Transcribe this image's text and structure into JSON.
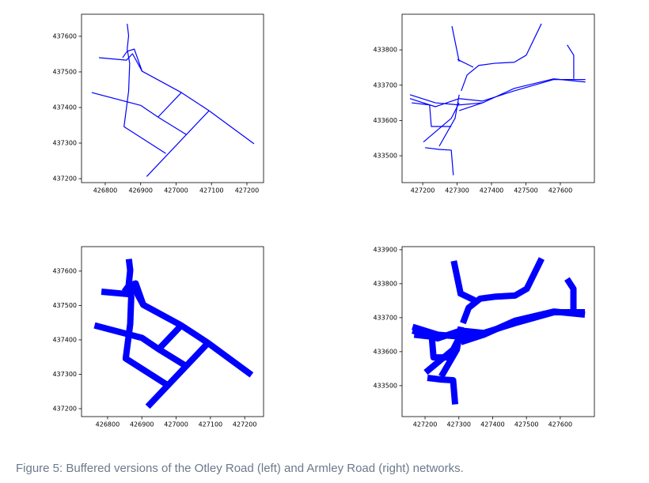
{
  "chart_data": [
    {
      "type": "network",
      "color": "#0000ff",
      "linewidth": 1.2,
      "xlim": [
        426733,
        427247
      ],
      "ylim": [
        437189,
        437662
      ],
      "xticks": [
        426800,
        426900,
        427000,
        427100,
        427200
      ],
      "yticks": [
        437200,
        437300,
        437400,
        437500,
        437600
      ],
      "lines": [
        {
          "x": [
            426862,
            426866,
            426862,
            426869,
            426866,
            426853,
            426971
          ],
          "y": [
            437635,
            437602,
            437564,
            437524,
            437446,
            437346,
            437271
          ]
        },
        {
          "x": [
            426782,
            426860,
            426877,
            426904,
            427015,
            427093,
            427220
          ],
          "y": [
            437540,
            437533,
            437551,
            437502,
            437442,
            437391,
            437298
          ]
        },
        {
          "x": [
            426762,
            426900,
            426949,
            427029
          ],
          "y": [
            437442,
            437406,
            437373,
            437324
          ]
        },
        {
          "x": [
            426949,
            427015
          ],
          "y": [
            437373,
            437442
          ]
        },
        {
          "x": [
            426917,
            427093
          ],
          "y": [
            437206,
            437391
          ]
        },
        {
          "x": [
            426849,
            426862,
            426882,
            426904
          ],
          "y": [
            437540,
            437558,
            437564,
            437502
          ]
        }
      ]
    },
    {
      "type": "network",
      "color": "#0000ff",
      "linewidth": 1.2,
      "xlim": [
        427140,
        427699
      ],
      "ylim": [
        433424,
        433901
      ],
      "xticks": [
        427200,
        427300,
        427400,
        427500,
        427600
      ],
      "yticks": [
        433500,
        433600,
        433700,
        433800
      ],
      "lines": [
        {
          "x": [
            427285,
            427306
          ],
          "y": [
            433867,
            433767
          ]
        },
        {
          "x": [
            427301,
            427347
          ],
          "y": [
            433773,
            433751
          ]
        },
        {
          "x": [
            427312,
            427329,
            427363,
            427409,
            427466,
            427501,
            427545
          ],
          "y": [
            433684,
            433729,
            433756,
            433762,
            433765,
            433785,
            433874
          ]
        },
        {
          "x": [
            427163,
            427237,
            427306,
            427374,
            427466,
            427581,
            427673
          ],
          "y": [
            433673,
            433650,
            433644,
            433650,
            433691,
            433718,
            433709
          ]
        },
        {
          "x": [
            427163,
            427237,
            427306,
            427374,
            427466,
            427581,
            427673
          ],
          "y": [
            433662,
            433639,
            433662,
            433655,
            433684,
            433716,
            433716
          ]
        },
        {
          "x": [
            427620,
            427639,
            427639
          ],
          "y": [
            433814,
            433785,
            433718
          ]
        },
        {
          "x": [
            427168,
            427220,
            427225,
            427283
          ],
          "y": [
            433650,
            433644,
            433583,
            433583
          ]
        },
        {
          "x": [
            427202,
            427283,
            427306
          ],
          "y": [
            433539,
            433606,
            433650
          ]
        },
        {
          "x": [
            427306,
            427374
          ],
          "y": [
            433628,
            433650
          ]
        },
        {
          "x": [
            427207,
            427248,
            427283,
            427289
          ],
          "y": [
            433523,
            433518,
            433516,
            433445
          ]
        },
        {
          "x": [
            427248,
            427294,
            427306
          ],
          "y": [
            433527,
            433606,
            433673
          ]
        }
      ]
    },
    {
      "type": "network",
      "color": "#0000ff",
      "linewidth": 8,
      "xlim": [
        426724,
        427255
      ],
      "ylim": [
        437177,
        437671
      ],
      "xticks": [
        426800,
        426900,
        427000,
        427100,
        427200
      ],
      "yticks": [
        437200,
        437300,
        437400,
        437500,
        437600
      ],
      "lines": [
        {
          "x": [
            426862,
            426866,
            426862,
            426869,
            426866,
            426853,
            426971
          ],
          "y": [
            437635,
            437602,
            437564,
            437524,
            437446,
            437346,
            437271
          ]
        },
        {
          "x": [
            426782,
            426860,
            426877,
            426904,
            427015,
            427093,
            427220
          ],
          "y": [
            437540,
            437533,
            437551,
            437502,
            437442,
            437391,
            437298
          ]
        },
        {
          "x": [
            426762,
            426900,
            426949,
            427029
          ],
          "y": [
            437442,
            437406,
            437373,
            437324
          ]
        },
        {
          "x": [
            426949,
            427015
          ],
          "y": [
            437373,
            437442
          ]
        },
        {
          "x": [
            426917,
            427093
          ],
          "y": [
            437206,
            437391
          ]
        },
        {
          "x": [
            426849,
            426862,
            426882,
            426904
          ],
          "y": [
            437540,
            437558,
            437564,
            437502
          ]
        }
      ]
    },
    {
      "type": "network",
      "color": "#0000ff",
      "linewidth": 8,
      "xlim": [
        427132,
        427701
      ],
      "ylim": [
        433409,
        433909
      ],
      "xticks": [
        427200,
        427300,
        427400,
        427500,
        427600
      ],
      "yticks": [
        433500,
        433600,
        433700,
        433800,
        433900
      ],
      "lines": [
        {
          "x": [
            427285,
            427306
          ],
          "y": [
            433867,
            433767
          ]
        },
        {
          "x": [
            427301,
            427347
          ],
          "y": [
            433773,
            433751
          ]
        },
        {
          "x": [
            427312,
            427329,
            427363,
            427409,
            427466,
            427501,
            427545
          ],
          "y": [
            433684,
            433729,
            433756,
            433762,
            433765,
            433785,
            433874
          ]
        },
        {
          "x": [
            427163,
            427237,
            427306,
            427374,
            427466,
            427581,
            427673
          ],
          "y": [
            433673,
            433650,
            433644,
            433650,
            433691,
            433718,
            433709
          ]
        },
        {
          "x": [
            427163,
            427237,
            427306,
            427374,
            427466,
            427581,
            427673
          ],
          "y": [
            433662,
            433639,
            433662,
            433655,
            433684,
            433716,
            433716
          ]
        },
        {
          "x": [
            427620,
            427639,
            427639
          ],
          "y": [
            433814,
            433785,
            433718
          ]
        },
        {
          "x": [
            427168,
            427220,
            427225,
            427283
          ],
          "y": [
            433650,
            433644,
            433583,
            433583
          ]
        },
        {
          "x": [
            427202,
            427283,
            427306
          ],
          "y": [
            433539,
            433606,
            433650
          ]
        },
        {
          "x": [
            427306,
            427374
          ],
          "y": [
            433628,
            433650
          ]
        },
        {
          "x": [
            427207,
            427248,
            427283,
            427289
          ],
          "y": [
            433523,
            433518,
            433516,
            433445
          ]
        },
        {
          "x": [
            427248,
            427294,
            427306
          ],
          "y": [
            433527,
            433606,
            433673
          ]
        }
      ]
    }
  ],
  "caption": "Figure 5: Buffered versions of the Otley Road (left) and Armley Road (right) networks."
}
